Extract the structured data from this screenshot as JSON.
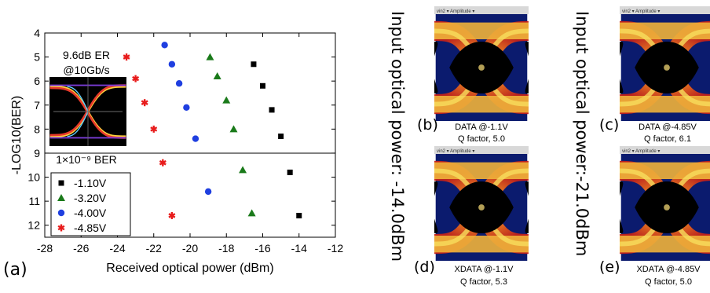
{
  "panel_a_letter": "(a)",
  "chart_data": {
    "type": "scatter",
    "xlabel": "Received optical power (dBm)",
    "ylabel": "-LOG10(BER)",
    "xlim": [
      -28,
      -12
    ],
    "ylim": [
      4,
      12.5
    ],
    "y_inverted": true,
    "x_ticks": [
      -28,
      -26,
      -24,
      -22,
      -20,
      -18,
      -16,
      -14,
      -12
    ],
    "y_ticks": [
      4,
      5,
      6,
      7,
      8,
      9,
      10,
      11,
      12
    ],
    "grid": false,
    "threshold_line": {
      "y": 9,
      "label": "1×10⁻⁹ BER"
    },
    "inset": {
      "line1": "9.6dB ER",
      "line2": "@10Gb/s"
    },
    "legend_position": "bottom-left",
    "series": [
      {
        "name": "-1.10V",
        "marker": "square",
        "color": "#000000",
        "x": [
          -16.5,
          -16.0,
          -15.5,
          -15.0,
          -14.5,
          -14.0
        ],
        "y": [
          5.3,
          6.2,
          7.2,
          8.3,
          9.8,
          11.6
        ]
      },
      {
        "name": "-3.20V",
        "marker": "triangle",
        "color": "#1a7a1a",
        "x": [
          -18.9,
          -18.5,
          -18.0,
          -17.6,
          -17.1,
          -16.6
        ],
        "y": [
          5.0,
          5.8,
          6.8,
          8.0,
          9.7,
          11.5
        ]
      },
      {
        "name": "-4.00V",
        "marker": "circle",
        "color": "#1f3fe0",
        "x": [
          -21.4,
          -21.0,
          -20.6,
          -20.2,
          -19.7,
          -19.0
        ],
        "y": [
          4.5,
          5.3,
          6.1,
          7.1,
          8.4,
          10.6
        ]
      },
      {
        "name": "-4.85V",
        "marker": "star",
        "color": "#e81c1c",
        "x": [
          -23.5,
          -23.0,
          -22.5,
          -22.0,
          -21.5,
          -21.0
        ],
        "y": [
          5.0,
          5.9,
          6.9,
          8.0,
          9.4,
          11.6
        ]
      }
    ]
  },
  "eye_toolbar_text": "vin2 ▾  Amplitude ▾",
  "side_labels": {
    "left": "Input optical power: -14.0dBm",
    "right": "Input optical power:-21.0dBm"
  },
  "eyes": {
    "b": {
      "letter": "(b)",
      "line1": "DATA @-1.1V",
      "line2": "Q factor, 5.0"
    },
    "c": {
      "letter": "(c)",
      "line1": "DATA @-4.85V",
      "line2": "Q factor, 6.1"
    },
    "d": {
      "letter": "(d)",
      "line1": "XDATA @-1.1V",
      "line2": "Q factor, 5.3"
    },
    "e": {
      "letter": "(e)",
      "line1": "XDATA @-4.85V",
      "line2": "Q factor, 5.0"
    }
  },
  "colors": {
    "eye_background": "#0b1b6e",
    "eye_trace_core": "#f2c23a",
    "eye_trace_mid": "#e84a14",
    "eye_opening": "#000000"
  }
}
